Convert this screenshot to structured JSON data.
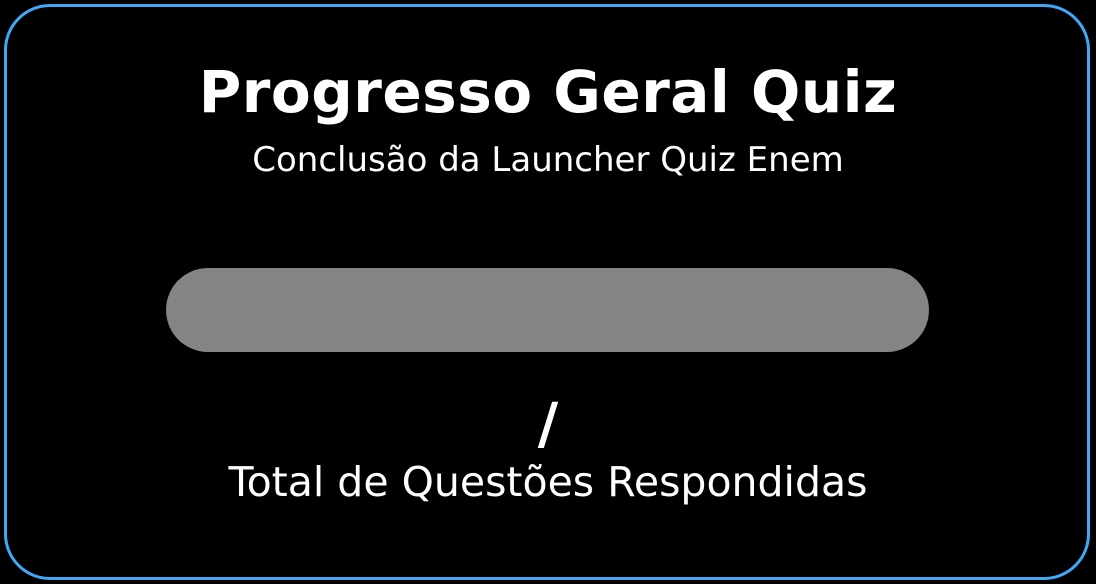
{
  "header": {
    "title": "Progresso Geral Quiz",
    "subtitle": "Conclusão da Launcher Quiz Enem"
  },
  "progress": {
    "fraction": 0,
    "separator": "/",
    "answered": "",
    "total": ""
  },
  "footer": {
    "label": "Total de Questões Respondidas"
  },
  "colors": {
    "border": "#3fa9f5",
    "background": "#000000",
    "track": "#848484",
    "text": "#ffffff"
  }
}
